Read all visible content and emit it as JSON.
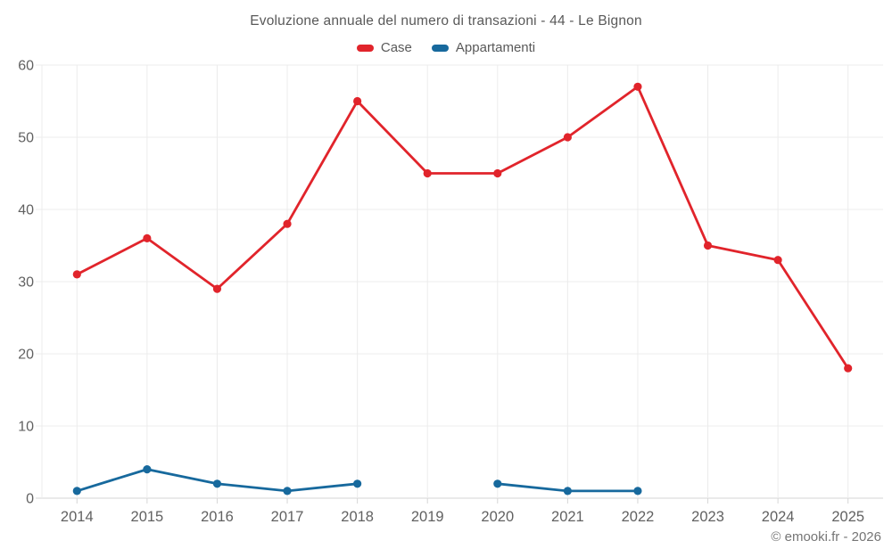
{
  "chart_data": {
    "type": "line",
    "title": "Evoluzione annuale del numero di transazioni - 44 - Le Bignon",
    "categories": [
      "2014",
      "2015",
      "2016",
      "2017",
      "2018",
      "2019",
      "2020",
      "2021",
      "2022",
      "2023",
      "2024",
      "2025"
    ],
    "series": [
      {
        "name": "Case",
        "color": "#e1242b",
        "values": [
          31,
          36,
          29,
          38,
          55,
          45,
          45,
          50,
          57,
          35,
          33,
          18
        ]
      },
      {
        "name": "Appartamenti",
        "color": "#17699d",
        "values": [
          1,
          4,
          2,
          1,
          2,
          null,
          2,
          1,
          1,
          null,
          null,
          null
        ]
      }
    ],
    "xlabel": "",
    "ylabel": "",
    "ylim": [
      0,
      60
    ],
    "ytick_step": 10,
    "grid": true,
    "legend_position": "top"
  },
  "footer": {
    "copyright": "© emooki.fr - 2026"
  }
}
